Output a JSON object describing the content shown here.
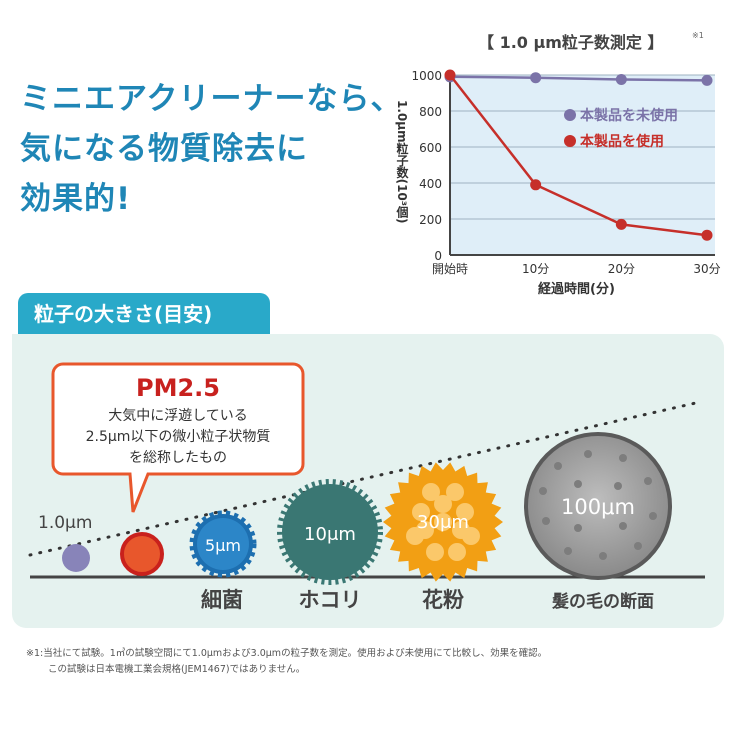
{
  "headline": [
    "ミニエアクリーナーなら、",
    "気になる物質除去に",
    "効果的!"
  ],
  "chart_data": {
    "type": "line",
    "title": "【 1.0 μm粒子数測定 】",
    "title_note": "※1",
    "xlabel": "経過時間(分)",
    "ylabel": "1.0μm粒子数(10³個)",
    "categories": [
      "開始時",
      "10分",
      "20分",
      "30分"
    ],
    "yticks": [
      0,
      200,
      400,
      600,
      800,
      1000
    ],
    "ylim": [
      0,
      1000
    ],
    "grid": true,
    "legend_position": "top-right",
    "series": [
      {
        "name": "本製品を未使用",
        "color": "#7b73a8",
        "values": [
          990,
          985,
          975,
          970
        ]
      },
      {
        "name": "本製品を使用",
        "color": "#c62f2a",
        "values": [
          1000,
          390,
          170,
          110
        ]
      }
    ]
  },
  "size_panel": {
    "title": "粒子の大きさ(目安)",
    "callout": {
      "title": "PM2.5",
      "lines": [
        "大気中に浮遊している",
        "2.5μm以下の微小粒子状物質",
        "を総称したもの"
      ]
    },
    "particles": [
      {
        "id": "p1",
        "inner": "",
        "label": "",
        "color": "#8884b9"
      },
      {
        "id": "pm25",
        "inner": "",
        "label": "",
        "color": "#e8572c"
      },
      {
        "id": "bacteria",
        "inner": "5μm",
        "label": "細菌",
        "color": "#2c7fc0"
      },
      {
        "id": "dust",
        "inner": "10μm",
        "label": "ホコリ",
        "color": "#3a7773"
      },
      {
        "id": "pollen",
        "inner": "30μm",
        "label": "花粉",
        "color": "#f4a51d"
      },
      {
        "id": "hair",
        "inner": "100μm",
        "label": "髪の毛の断面",
        "color": "#727272"
      }
    ],
    "ref_label": "1.0μm"
  },
  "footnote": [
    "※1:当社にて試験。1㎥の試験空間にて1.0μmおよび3.0μmの粒子数を測定。使用および未使用にて比較し、効果を確認。",
    "この試験は日本電機工業会規格(JEM1467)ではありません。"
  ]
}
